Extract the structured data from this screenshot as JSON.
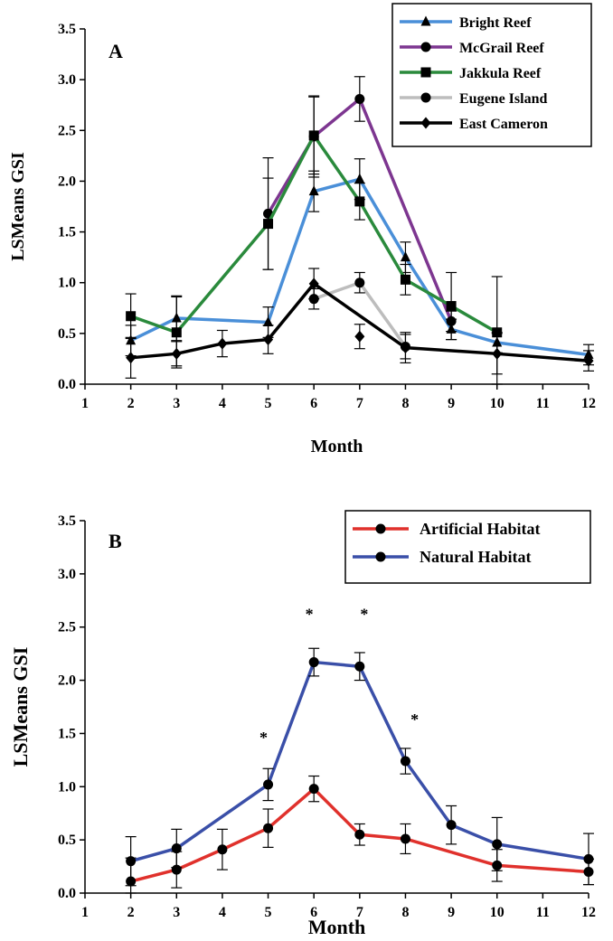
{
  "chart_data": [
    {
      "type": "line",
      "panel_label": "A",
      "xlabel": "Month",
      "ylabel": "LSMeans GSI",
      "xlim": [
        1,
        12
      ],
      "ylim": [
        0,
        3.5
      ],
      "x_ticks": [
        1,
        2,
        3,
        4,
        5,
        6,
        7,
        8,
        9,
        10,
        11,
        12
      ],
      "y_ticks": [
        "0.0",
        "0.5",
        "1.0",
        "1.5",
        "2.0",
        "2.5",
        "3.0",
        "3.5"
      ],
      "legend_position": "top-right",
      "grid": false,
      "series": [
        {
          "name": "Bright Reef",
          "color": "#4a8fd8",
          "marker": "triangle",
          "x": [
            2,
            3,
            5,
            6,
            7,
            8,
            9,
            10,
            12
          ],
          "y": [
            0.43,
            0.65,
            0.61,
            1.9,
            2.02,
            1.25,
            0.54,
            0.41,
            0.29
          ],
          "err": [
            0.15,
            0.22,
            0.15,
            0.2,
            0.2,
            0.15,
            0.1,
            0.1,
            0.1
          ]
        },
        {
          "name": "McGrail Reef",
          "color": "#7d3690",
          "marker": "circle",
          "x": [
            5,
            6,
            7,
            9
          ],
          "y": [
            1.68,
            2.44,
            2.81,
            0.62
          ],
          "err": [
            0.55,
            0.4,
            0.22,
            0.1
          ]
        },
        {
          "name": "Jakkula Reef",
          "color": "#2a8a3c",
          "marker": "square",
          "x": [
            2,
            3,
            5,
            6,
            7,
            8,
            9,
            10
          ],
          "y": [
            0.67,
            0.51,
            1.58,
            2.45,
            1.8,
            1.03,
            0.77,
            0.51
          ],
          "err": [
            0.22,
            0.35,
            0.45,
            0.38,
            0.18,
            0.15,
            0.33,
            0.55
          ]
        },
        {
          "name": "Eugene Island",
          "color": "#bdbdbd",
          "marker": "circle",
          "x": [
            6,
            7,
            8
          ],
          "y": [
            0.84,
            1.0,
            0.37
          ],
          "err": [
            0.1,
            0.1,
            0.12
          ]
        },
        {
          "name": "East Cameron",
          "color": "#000000",
          "marker": "diamond",
          "x": [
            2,
            3,
            4,
            5,
            6,
            8,
            10,
            12
          ],
          "y": [
            0.26,
            0.3,
            0.4,
            0.44,
            0.99,
            0.36,
            0.3,
            0.23
          ],
          "err": [
            0.2,
            0.12,
            0.13,
            0.14,
            0.15,
            0.15,
            0.2,
            0.1
          ],
          "extra_points": [
            {
              "x": 7,
              "y": 0.47,
              "err": 0.12
            }
          ]
        }
      ],
      "annotations": []
    },
    {
      "type": "line",
      "panel_label": "B",
      "xlabel": "Month",
      "ylabel": "LSMeans GSI",
      "xlim": [
        1,
        12
      ],
      "ylim": [
        0,
        3.5
      ],
      "x_ticks": [
        1,
        2,
        3,
        4,
        5,
        6,
        7,
        8,
        9,
        10,
        11,
        12
      ],
      "y_ticks": [
        "0.0",
        "0.5",
        "1.0",
        "1.5",
        "2.0",
        "2.5",
        "3.0",
        "3.5"
      ],
      "legend_position": "top-right",
      "grid": false,
      "series": [
        {
          "name": "Artificial Habitat",
          "color": "#e0312c",
          "marker": "circle",
          "x": [
            2,
            3,
            4,
            5,
            6,
            7,
            8,
            10,
            12
          ],
          "y": [
            0.11,
            0.22,
            0.41,
            0.61,
            0.98,
            0.55,
            0.51,
            0.26,
            0.2
          ],
          "err": [
            0.22,
            0.17,
            0.19,
            0.18,
            0.12,
            0.1,
            0.14,
            0.15,
            0.12
          ]
        },
        {
          "name": "Natural Habitat",
          "color": "#3a4fa8",
          "marker": "circle",
          "x": [
            2,
            3,
            5,
            6,
            7,
            8,
            9,
            10,
            12
          ],
          "y": [
            0.3,
            0.42,
            1.02,
            2.17,
            2.13,
            1.24,
            0.64,
            0.46,
            0.32
          ],
          "err": [
            0.23,
            0.18,
            0.15,
            0.13,
            0.13,
            0.12,
            0.18,
            0.25,
            0.24
          ]
        }
      ],
      "annotations": [
        {
          "text": "*",
          "x": 4.9,
          "y": 1.41
        },
        {
          "text": "*",
          "x": 5.9,
          "y": 2.57
        },
        {
          "text": "*",
          "x": 7.1,
          "y": 2.57
        },
        {
          "text": "*",
          "x": 8.2,
          "y": 1.58
        }
      ]
    }
  ]
}
